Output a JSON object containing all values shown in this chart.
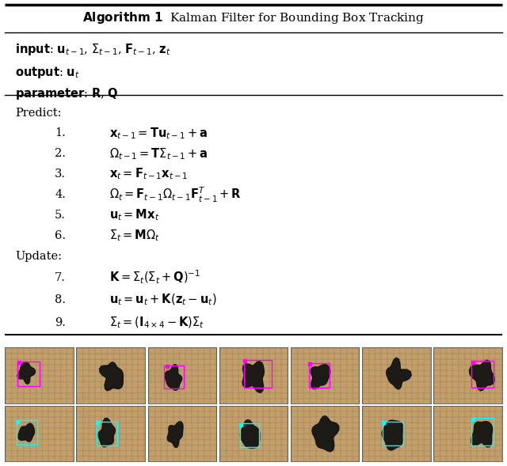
{
  "title": "Algorithm 1  Kalman Filter for Bounding Box Tracking",
  "predict_label": "Predict:",
  "predict_steps": [
    "$\\mathbf{x}_{t-1} = \\mathbf{T}\\mathbf{u}_{t-1} + \\mathbf{a}$",
    "$\\Omega_{t-1} = \\mathbf{T}\\Sigma_{t-1} + \\mathbf{a}$",
    "$\\mathbf{x}_t = \\mathbf{F}_{t-1}\\mathbf{x}_{t-1}$",
    "$\\Omega_t = \\mathbf{F}_{t-1}\\Omega_{t-1}\\mathbf{F}_{t-1}^T + \\mathbf{R}$",
    "$\\mathbf{u}_t = \\mathbf{M}\\mathbf{x}_t$",
    "$\\Sigma_t = \\mathbf{M}\\Omega_t$"
  ],
  "update_label": "Update:",
  "update_steps": [
    "$\\mathbf{K} = \\Sigma_t(\\Sigma_t + \\mathbf{Q})^{-1}$",
    "$\\mathbf{u}_t = \\mathbf{u}_t + \\mathbf{K}(\\mathbf{z}_t - \\mathbf{u}_t)$",
    "$\\Sigma_t = (\\mathbf{I}_{4\\times4} - \\mathbf{K})\\Sigma_t$"
  ],
  "num_cols": 7,
  "num_rows": 2,
  "box1_color": "#ff00ff",
  "box2_color": "#00ffff",
  "figure_width": 6.4,
  "figure_height": 5.89
}
